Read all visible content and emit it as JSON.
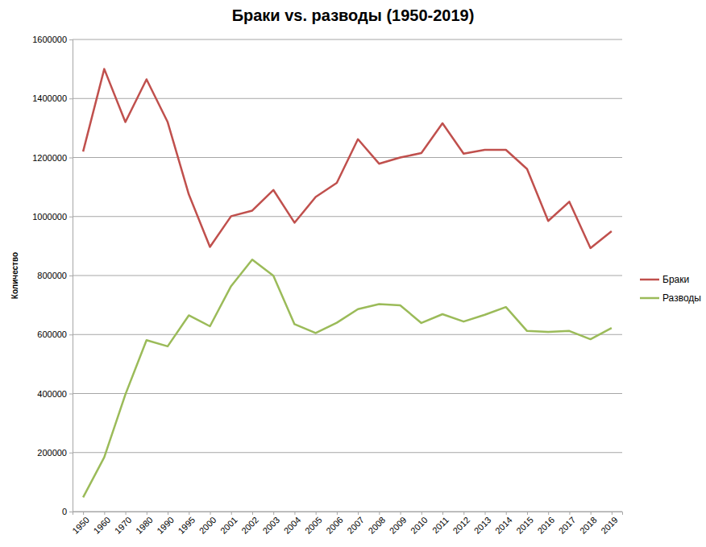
{
  "chart_data": {
    "type": "line",
    "title": "Браки vs. разводы (1950-2019)",
    "y_label": "Количество",
    "categories": [
      "1950",
      "1960",
      "1970",
      "1980",
      "1990",
      "1995",
      "2000",
      "2001",
      "2002",
      "2003",
      "2004",
      "2005",
      "2006",
      "2007",
      "2008",
      "2009",
      "2010",
      "2011",
      "2012",
      "2013",
      "2014",
      "2015",
      "2016",
      "2017",
      "2018",
      "2019"
    ],
    "series": [
      {
        "name": "Браки",
        "color": "#c0504d",
        "values": [
          1220000,
          1500000,
          1320000,
          1465000,
          1320000,
          1075000,
          897000,
          1001000,
          1020000,
          1090000,
          979000,
          1066000,
          1114000,
          1262000,
          1179000,
          1200000,
          1215000,
          1316000,
          1213000,
          1226000,
          1226000,
          1161000,
          985000,
          1050000,
          893000,
          950000
        ]
      },
      {
        "name": "Разводы",
        "color": "#9bbb59",
        "values": [
          48000,
          184000,
          397000,
          581000,
          560000,
          665000,
          628000,
          764000,
          854000,
          799000,
          635000,
          605000,
          640000,
          686000,
          703000,
          699000,
          639000,
          669000,
          644000,
          667000,
          693000,
          612000,
          609000,
          612000,
          584000,
          622000
        ]
      }
    ],
    "ylim": [
      0,
      1600000
    ],
    "yticks": [
      0,
      200000,
      400000,
      600000,
      800000,
      1000000,
      1200000,
      1400000,
      1600000
    ],
    "grid": true,
    "legend": "right"
  }
}
